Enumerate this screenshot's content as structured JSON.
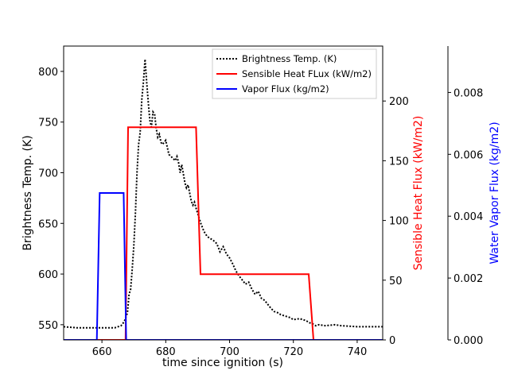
{
  "chart_data": {
    "type": "line",
    "xlabel": "time since ignition (s)",
    "xlim": [
      648,
      748
    ],
    "xticks": [
      660,
      680,
      700,
      720,
      740
    ],
    "axes": [
      {
        "id": "brightness",
        "label": "Brightness Temp. (K)",
        "side": "left",
        "color": "#000000",
        "ylim": [
          535,
          825
        ],
        "ticks": [
          550,
          600,
          650,
          700,
          750,
          800
        ],
        "tick_labels": [
          "550",
          "600",
          "650",
          "700",
          "750",
          "800"
        ]
      },
      {
        "id": "heatflux",
        "label": "Sensible Heat Flux (kW/m2)",
        "side": "right",
        "color": "#ff0000",
        "ylim": [
          0,
          246
        ],
        "ticks": [
          0,
          50,
          100,
          150,
          200
        ],
        "tick_labels": [
          "0",
          "50",
          "100",
          "150",
          "200"
        ]
      },
      {
        "id": "vapor",
        "label": "Water Vapor Flux (kg/m2)",
        "side": "right-outer",
        "color": "#0000ff",
        "ylim": [
          0,
          0.0095
        ],
        "ticks": [
          0,
          0.002,
          0.004,
          0.006,
          0.008
        ],
        "tick_labels": [
          "0.000",
          "0.002",
          "0.004",
          "0.006",
          "0.008"
        ]
      }
    ],
    "series": [
      {
        "name": "Brightness Temp. (K)",
        "axis": "brightness",
        "color": "#000000",
        "style": "dotted",
        "points": [
          [
            648,
            548
          ],
          [
            652,
            547
          ],
          [
            656,
            547
          ],
          [
            660,
            547
          ],
          [
            662,
            547
          ],
          [
            664,
            547
          ],
          [
            666,
            549
          ],
          [
            667,
            553
          ],
          [
            668,
            562
          ],
          [
            668.5,
            580
          ],
          [
            669,
            585
          ],
          [
            669.5,
            605
          ],
          [
            670,
            628
          ],
          [
            670.5,
            660
          ],
          [
            671,
            700
          ],
          [
            671.5,
            728
          ],
          [
            672,
            740
          ],
          [
            672.5,
            772
          ],
          [
            673,
            790
          ],
          [
            673.5,
            812
          ],
          [
            674,
            790
          ],
          [
            674.5,
            770
          ],
          [
            675,
            752
          ],
          [
            675.5,
            745
          ],
          [
            676,
            760
          ],
          [
            676.5,
            758
          ],
          [
            677,
            744
          ],
          [
            677.5,
            735
          ],
          [
            678,
            738
          ],
          [
            678.5,
            730
          ],
          [
            679,
            728
          ],
          [
            680,
            732
          ],
          [
            680.5,
            725
          ],
          [
            681,
            718
          ],
          [
            682,
            715
          ],
          [
            683,
            712
          ],
          [
            683.5,
            716
          ],
          [
            684,
            710
          ],
          [
            684.5,
            700
          ],
          [
            685,
            708
          ],
          [
            686,
            690
          ],
          [
            686.5,
            685
          ],
          [
            687,
            688
          ],
          [
            687.5,
            680
          ],
          [
            688,
            672
          ],
          [
            688.5,
            668
          ],
          [
            689,
            671
          ],
          [
            689.5,
            665
          ],
          [
            690,
            660
          ],
          [
            690.5,
            655
          ],
          [
            691,
            650
          ],
          [
            692,
            642
          ],
          [
            693,
            637
          ],
          [
            694,
            635
          ],
          [
            695,
            633
          ],
          [
            696,
            630
          ],
          [
            697,
            622
          ],
          [
            698,
            627
          ],
          [
            699,
            620
          ],
          [
            700,
            616
          ],
          [
            701,
            610
          ],
          [
            702,
            603
          ],
          [
            703,
            598
          ],
          [
            704,
            594
          ],
          [
            705,
            590
          ],
          [
            706,
            592
          ],
          [
            707,
            585
          ],
          [
            708,
            580
          ],
          [
            709,
            583
          ],
          [
            710,
            576
          ],
          [
            711,
            574
          ],
          [
            712,
            570
          ],
          [
            713,
            566
          ],
          [
            714,
            563
          ],
          [
            715,
            562
          ],
          [
            716,
            560
          ],
          [
            717,
            559
          ],
          [
            718,
            558
          ],
          [
            719,
            557
          ],
          [
            720,
            555
          ],
          [
            722,
            556
          ],
          [
            724,
            554
          ],
          [
            725,
            552
          ],
          [
            726,
            551
          ],
          [
            727,
            549
          ],
          [
            728,
            550
          ],
          [
            730,
            549
          ],
          [
            733,
            550
          ],
          [
            735,
            549
          ],
          [
            740,
            548
          ],
          [
            744,
            548
          ],
          [
            748,
            548
          ]
        ]
      },
      {
        "name": "Sensible Heat FLux (kW/m2)",
        "axis": "heatflux",
        "color": "#ff0000",
        "style": "solid",
        "points": [
          [
            648,
            0
          ],
          [
            667.4,
            0
          ],
          [
            668.2,
            178
          ],
          [
            689.5,
            178
          ],
          [
            690.9,
            55
          ],
          [
            724.8,
            55
          ],
          [
            726.3,
            0
          ],
          [
            748,
            0
          ]
        ]
      },
      {
        "name": "Vapor Flux (kg/m2)",
        "axis": "vapor",
        "color": "#0000ff",
        "style": "solid",
        "points": [
          [
            648,
            0
          ],
          [
            658.4,
            0
          ],
          [
            659.3,
            0.00475
          ],
          [
            666.8,
            0.00475
          ],
          [
            667.6,
            0
          ],
          [
            748,
            0
          ]
        ]
      }
    ],
    "legend": {
      "location": "top-right",
      "entries": [
        "Brightness Temp. (K)",
        "Sensible Heat FLux (kW/m2)",
        "Vapor Flux (kg/m2)"
      ]
    }
  }
}
